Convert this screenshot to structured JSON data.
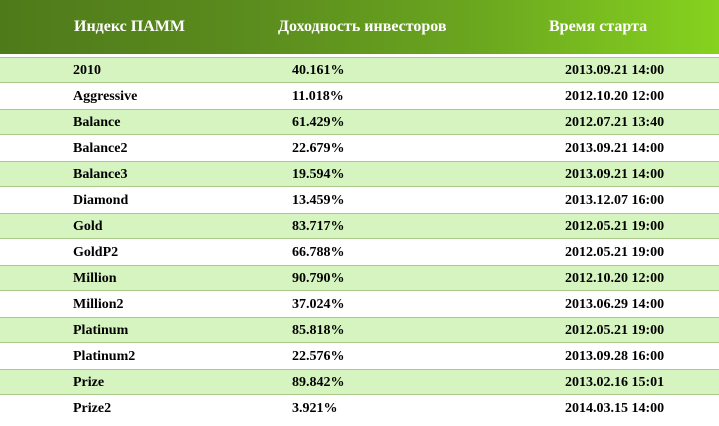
{
  "header": {
    "col_name": "Индекс ПАММ",
    "col_yield": "Доходность инвесторов",
    "col_start": "Время старта"
  },
  "colors": {
    "header_gradient_start": "#4f7a1a",
    "header_gradient_end": "#86d21f",
    "header_text": "#ffffff",
    "row_shaded": "#d6f4c0",
    "row_border": "#aac98a",
    "row_plain": "#ffffff"
  },
  "rows": [
    {
      "name": "2010",
      "yield": "40.161%",
      "start": "2013.09.21 14:00",
      "shaded": true
    },
    {
      "name": "Aggressive",
      "yield": "11.018%",
      "start": "2012.10.20 12:00",
      "shaded": false
    },
    {
      "name": "Balance",
      "yield": "61.429%",
      "start": "2012.07.21 13:40",
      "shaded": true
    },
    {
      "name": "Balance2",
      "yield": "22.679%",
      "start": "2013.09.21 14:00",
      "shaded": false
    },
    {
      "name": "Balance3",
      "yield": "19.594%",
      "start": "2013.09.21 14:00",
      "shaded": true
    },
    {
      "name": "Diamond",
      "yield": "13.459%",
      "start": "2013.12.07 16:00",
      "shaded": false
    },
    {
      "name": "Gold",
      "yield": "83.717%",
      "start": "2012.05.21 19:00",
      "shaded": true
    },
    {
      "name": "GoldP2",
      "yield": "66.788%",
      "start": "2012.05.21 19:00",
      "shaded": false
    },
    {
      "name": "Million",
      "yield": "90.790%",
      "start": "2012.10.20 12:00",
      "shaded": true
    },
    {
      "name": "Million2",
      "yield": "37.024%",
      "start": "2013.06.29 14:00",
      "shaded": false
    },
    {
      "name": "Platinum",
      "yield": "85.818%",
      "start": "2012.05.21 19:00",
      "shaded": true
    },
    {
      "name": "Platinum2",
      "yield": "22.576%",
      "start": "2013.09.28 16:00",
      "shaded": false
    },
    {
      "name": "Prize",
      "yield": "89.842%",
      "start": "2013.02.16 15:01",
      "shaded": true
    },
    {
      "name": "Prize2",
      "yield": "3.921%",
      "start": "2014.03.15 14:00",
      "shaded": false
    }
  ]
}
